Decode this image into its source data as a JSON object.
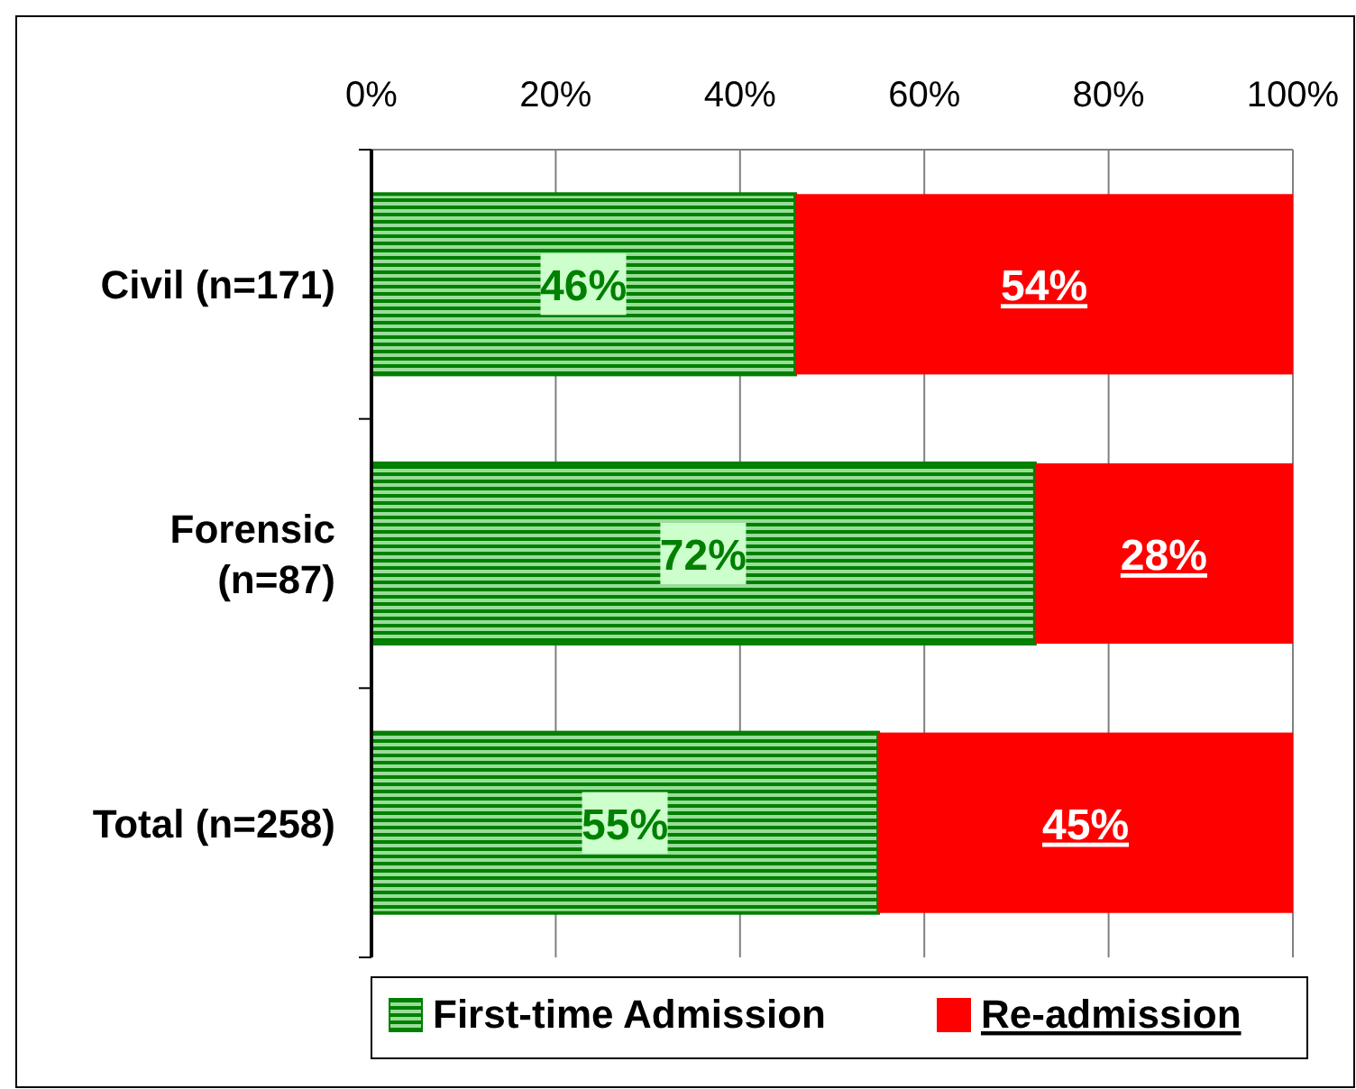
{
  "chart_data": {
    "type": "bar",
    "orientation": "horizontal",
    "stacked": true,
    "categories": [
      "Civil (n=171)",
      "Forensic (n=87)",
      "Total (n=258)"
    ],
    "series": [
      {
        "name": "First-time Admission",
        "color": "#008000",
        "values": [
          46,
          72,
          55
        ],
        "value_labels": [
          "46%",
          "72%",
          "55%"
        ]
      },
      {
        "name": "Re-admission",
        "color": "#ff0000",
        "values": [
          54,
          28,
          45
        ],
        "value_labels": [
          "54%",
          "28%",
          "45%"
        ]
      }
    ],
    "xlim": [
      0,
      100
    ],
    "xticks": [
      {
        "value": 0,
        "label": "0%"
      },
      {
        "value": 20,
        "label": "20%"
      },
      {
        "value": 40,
        "label": "40%"
      },
      {
        "value": 60,
        "label": "60%"
      },
      {
        "value": 80,
        "label": "80%"
      },
      {
        "value": 100,
        "label": "100%"
      }
    ],
    "grid": "x",
    "legend": "bottom"
  }
}
